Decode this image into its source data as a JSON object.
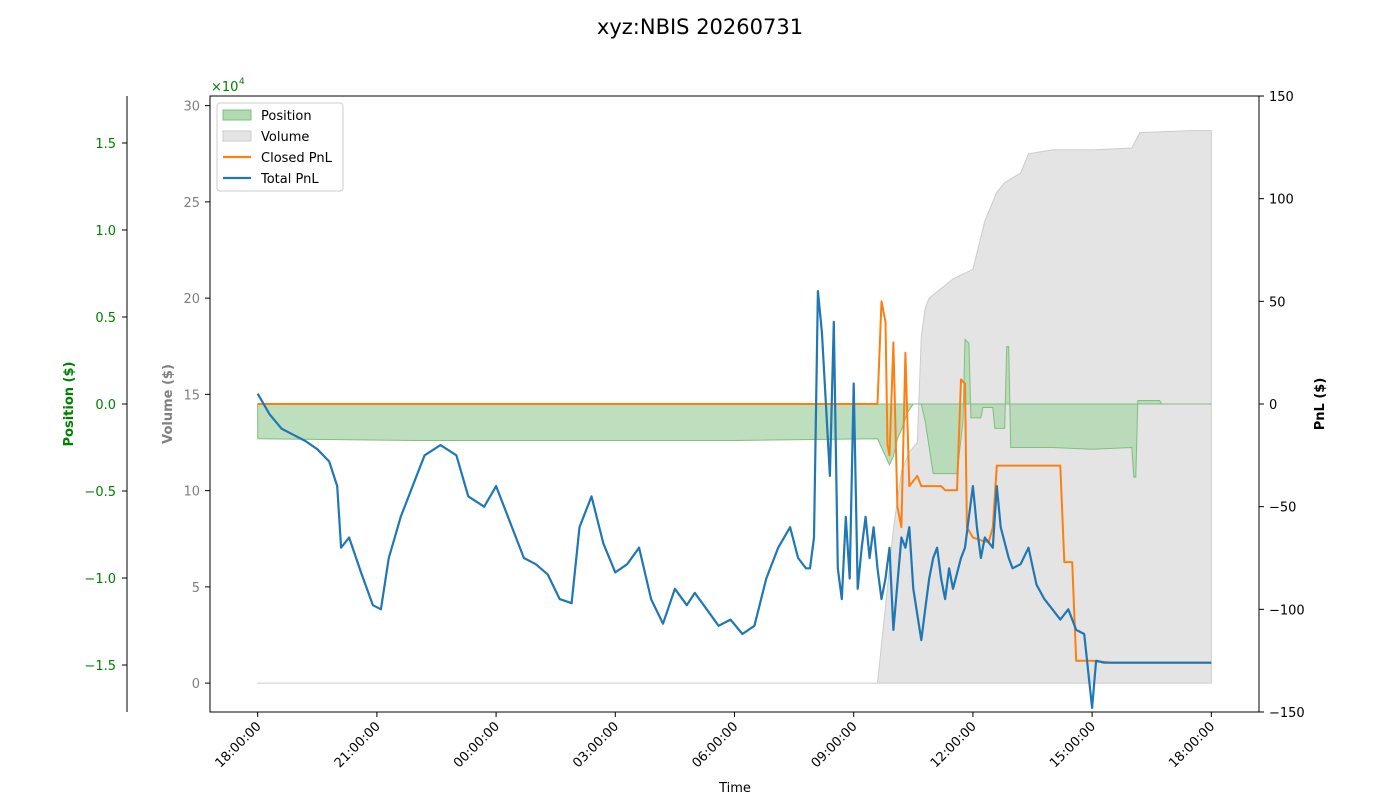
{
  "chart_data": {
    "type": "line",
    "title": "xyz:NBIS 20260731",
    "xlabel": "Time",
    "x_ticks": [
      "18:00:00",
      "21:00:00",
      "00:00:00",
      "03:00:00",
      "06:00:00",
      "09:00:00",
      "12:00:00",
      "15:00:00",
      "18:00:00"
    ],
    "x_range_hours": [
      -1.2,
      25.2
    ],
    "axes": {
      "position": {
        "label": "Position ($)",
        "color": "#008000",
        "range": [
          -1.77,
          1.77
        ],
        "ticks": [
          "1.5",
          "1.0",
          "0.5",
          "0.0",
          "−0.5",
          "−1.0",
          "−1.5"
        ],
        "tick_values": [
          1.5,
          1.0,
          0.5,
          0.0,
          -0.5,
          -1.0,
          -1.5
        ],
        "scale_label": "×10",
        "scale_exp": "4"
      },
      "volume": {
        "label": "Volume ($)",
        "color": "#808080",
        "range": [
          -1.5,
          30.5
        ],
        "ticks": [
          "30",
          "25",
          "20",
          "15",
          "10",
          "5",
          "0"
        ],
        "tick_values": [
          30,
          25,
          20,
          15,
          10,
          5,
          0
        ]
      },
      "pnl": {
        "label": "PnL ($)",
        "color": "#000000",
        "range": [
          -150,
          150
        ],
        "ticks": [
          "150",
          "100",
          "50",
          "0",
          "−50",
          "−100",
          "−150"
        ],
        "tick_values": [
          150,
          100,
          50,
          0,
          -50,
          -100,
          -150
        ]
      }
    },
    "legend": {
      "placement": "top-left",
      "items": [
        {
          "name": "Position",
          "kind": "fill",
          "color": "#b2d9b2",
          "edge": "#7fbf7f"
        },
        {
          "name": "Volume",
          "kind": "fill",
          "color": "#e4e4e4",
          "edge": "#cccccc"
        },
        {
          "name": "Closed PnL",
          "kind": "line",
          "color": "#ff7f0e"
        },
        {
          "name": "Total PnL",
          "kind": "line",
          "color": "#1f77b4"
        }
      ]
    },
    "series": [
      {
        "name": "Volume",
        "axis": "volume",
        "color": "#e4e4e4",
        "points": [
          [
            0,
            0
          ],
          [
            15.6,
            0
          ],
          [
            15.7,
            2
          ],
          [
            15.8,
            4
          ],
          [
            15.9,
            6
          ],
          [
            16.0,
            8
          ],
          [
            16.1,
            9.5
          ],
          [
            16.2,
            11
          ],
          [
            16.4,
            12
          ],
          [
            16.6,
            12.5
          ],
          [
            16.7,
            18
          ],
          [
            16.8,
            19.5
          ],
          [
            16.9,
            20
          ],
          [
            17.2,
            20.5
          ],
          [
            17.5,
            21
          ],
          [
            18.0,
            21.5
          ],
          [
            18.3,
            24
          ],
          [
            18.4,
            24.5
          ],
          [
            18.6,
            25.5
          ],
          [
            18.8,
            26
          ],
          [
            19.2,
            26.5
          ],
          [
            19.4,
            27.5
          ],
          [
            20.0,
            27.7
          ],
          [
            21.0,
            27.7
          ],
          [
            22.0,
            27.8
          ],
          [
            22.2,
            28.6
          ],
          [
            23.5,
            28.7
          ],
          [
            24.0,
            28.7
          ]
        ]
      },
      {
        "name": "Position",
        "axis": "position",
        "color": "#b2d9b2",
        "points": [
          [
            0,
            -0.2
          ],
          [
            4,
            -0.21
          ],
          [
            8,
            -0.21
          ],
          [
            12,
            -0.21
          ],
          [
            15.6,
            -0.2
          ],
          [
            15.7,
            -0.25
          ],
          [
            15.9,
            -0.35
          ],
          [
            16.0,
            -0.3
          ],
          [
            16.1,
            -0.2
          ],
          [
            16.2,
            -0.15
          ],
          [
            16.35,
            -0.05
          ],
          [
            16.5,
            0.0
          ],
          [
            16.7,
            0.0
          ],
          [
            16.8,
            -0.1
          ],
          [
            17.0,
            -0.4
          ],
          [
            17.6,
            -0.4
          ],
          [
            17.7,
            -0.2
          ],
          [
            17.75,
            -0.1
          ],
          [
            17.8,
            0.37
          ],
          [
            17.9,
            0.35
          ],
          [
            17.95,
            -0.08
          ],
          [
            18.2,
            -0.08
          ],
          [
            18.25,
            -0.02
          ],
          [
            18.5,
            -0.02
          ],
          [
            18.55,
            -0.14
          ],
          [
            18.8,
            -0.14
          ],
          [
            18.85,
            0.33
          ],
          [
            18.9,
            0.33
          ],
          [
            18.95,
            -0.25
          ],
          [
            20.0,
            -0.25
          ],
          [
            21.0,
            -0.26
          ],
          [
            22.0,
            -0.25
          ],
          [
            22.05,
            -0.42
          ],
          [
            22.1,
            -0.42
          ],
          [
            22.15,
            0.02
          ],
          [
            22.7,
            0.02
          ],
          [
            22.75,
            0.0
          ],
          [
            24.0,
            0.0
          ]
        ]
      },
      {
        "name": "Closed PnL",
        "axis": "pnl",
        "color": "#ff7f0e",
        "points": [
          [
            0,
            0
          ],
          [
            15.6,
            0
          ],
          [
            15.7,
            50
          ],
          [
            15.8,
            40
          ],
          [
            15.85,
            -20
          ],
          [
            15.9,
            -25
          ],
          [
            16.0,
            30
          ],
          [
            16.1,
            -50
          ],
          [
            16.2,
            -60
          ],
          [
            16.3,
            25
          ],
          [
            16.4,
            -40
          ],
          [
            16.6,
            -35
          ],
          [
            16.7,
            -40
          ],
          [
            17.2,
            -40
          ],
          [
            17.3,
            -42
          ],
          [
            17.6,
            -42
          ],
          [
            17.7,
            12
          ],
          [
            17.8,
            10
          ],
          [
            17.85,
            -60
          ],
          [
            18.0,
            -65
          ],
          [
            18.3,
            -67
          ],
          [
            18.4,
            -67
          ],
          [
            18.5,
            -60
          ],
          [
            18.6,
            -30
          ],
          [
            20.2,
            -30
          ],
          [
            20.3,
            -77
          ],
          [
            20.5,
            -77
          ],
          [
            20.6,
            -125
          ],
          [
            21.0,
            -125
          ],
          [
            21.5,
            -126
          ],
          [
            24,
            -126
          ]
        ]
      },
      {
        "name": "Total PnL",
        "axis": "pnl",
        "color": "#1f77b4",
        "points": [
          [
            0,
            5
          ],
          [
            0.3,
            -5
          ],
          [
            0.6,
            -12
          ],
          [
            0.9,
            -15
          ],
          [
            1.2,
            -18
          ],
          [
            1.5,
            -22
          ],
          [
            1.8,
            -28
          ],
          [
            2.0,
            -40
          ],
          [
            2.1,
            -70
          ],
          [
            2.3,
            -65
          ],
          [
            2.6,
            -82
          ],
          [
            2.9,
            -98
          ],
          [
            3.1,
            -100
          ],
          [
            3.3,
            -75
          ],
          [
            3.6,
            -55
          ],
          [
            3.9,
            -40
          ],
          [
            4.2,
            -25
          ],
          [
            4.6,
            -20
          ],
          [
            5.0,
            -25
          ],
          [
            5.3,
            -45
          ],
          [
            5.7,
            -50
          ],
          [
            6.0,
            -40
          ],
          [
            6.3,
            -55
          ],
          [
            6.7,
            -75
          ],
          [
            7.0,
            -78
          ],
          [
            7.3,
            -83
          ],
          [
            7.6,
            -95
          ],
          [
            7.9,
            -97
          ],
          [
            8.1,
            -60
          ],
          [
            8.4,
            -45
          ],
          [
            8.7,
            -68
          ],
          [
            9.0,
            -82
          ],
          [
            9.3,
            -78
          ],
          [
            9.6,
            -70
          ],
          [
            9.9,
            -95
          ],
          [
            10.2,
            -107
          ],
          [
            10.5,
            -90
          ],
          [
            10.8,
            -98
          ],
          [
            11.0,
            -92
          ],
          [
            11.3,
            -100
          ],
          [
            11.6,
            -108
          ],
          [
            11.9,
            -105
          ],
          [
            12.2,
            -112
          ],
          [
            12.5,
            -108
          ],
          [
            12.8,
            -85
          ],
          [
            13.1,
            -70
          ],
          [
            13.4,
            -60
          ],
          [
            13.6,
            -75
          ],
          [
            13.8,
            -80
          ],
          [
            13.9,
            -80
          ],
          [
            14.0,
            -65
          ],
          [
            14.1,
            55
          ],
          [
            14.2,
            35
          ],
          [
            14.3,
            0
          ],
          [
            14.4,
            -35
          ],
          [
            14.5,
            40
          ],
          [
            14.6,
            -80
          ],
          [
            14.7,
            -95
          ],
          [
            14.8,
            -55
          ],
          [
            14.9,
            -85
          ],
          [
            15.0,
            10
          ],
          [
            15.1,
            -90
          ],
          [
            15.2,
            -70
          ],
          [
            15.3,
            -55
          ],
          [
            15.4,
            -75
          ],
          [
            15.5,
            -60
          ],
          [
            15.6,
            -80
          ],
          [
            15.7,
            -95
          ],
          [
            15.8,
            -85
          ],
          [
            15.9,
            -70
          ],
          [
            16.0,
            -110
          ],
          [
            16.2,
            -65
          ],
          [
            16.3,
            -70
          ],
          [
            16.4,
            -60
          ],
          [
            16.5,
            -90
          ],
          [
            16.7,
            -115
          ],
          [
            16.8,
            -100
          ],
          [
            16.9,
            -85
          ],
          [
            17.0,
            -75
          ],
          [
            17.1,
            -70
          ],
          [
            17.2,
            -85
          ],
          [
            17.3,
            -95
          ],
          [
            17.4,
            -80
          ],
          [
            17.5,
            -90
          ],
          [
            17.7,
            -75
          ],
          [
            17.8,
            -70
          ],
          [
            17.9,
            -55
          ],
          [
            18.0,
            -40
          ],
          [
            18.1,
            -60
          ],
          [
            18.2,
            -75
          ],
          [
            18.3,
            -65
          ],
          [
            18.5,
            -70
          ],
          [
            18.6,
            -40
          ],
          [
            18.7,
            -60
          ],
          [
            18.9,
            -75
          ],
          [
            19.0,
            -80
          ],
          [
            19.2,
            -78
          ],
          [
            19.4,
            -70
          ],
          [
            19.6,
            -88
          ],
          [
            19.8,
            -95
          ],
          [
            20.0,
            -100
          ],
          [
            20.2,
            -105
          ],
          [
            20.4,
            -100
          ],
          [
            20.6,
            -110
          ],
          [
            20.8,
            -112
          ],
          [
            21.0,
            -148
          ],
          [
            21.1,
            -125
          ],
          [
            21.3,
            -126
          ],
          [
            21.6,
            -126
          ],
          [
            24,
            -126
          ]
        ]
      }
    ]
  }
}
